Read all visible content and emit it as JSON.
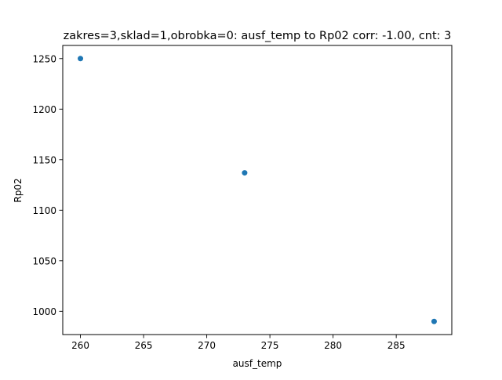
{
  "chart_data": {
    "type": "scatter",
    "title": "zakres=3,sklad=1,obrobka=0: ausf_temp to Rp02 corr: -1.00, cnt: 3",
    "xlabel": "ausf_temp",
    "ylabel": "Rp02",
    "xlim": [
      258.6,
      289.4
    ],
    "ylim": [
      977.0,
      1263.0
    ],
    "xticks": [
      260,
      265,
      270,
      275,
      280,
      285
    ],
    "yticks": [
      1000,
      1050,
      1100,
      1150,
      1200,
      1250
    ],
    "grid": false,
    "legend": "none",
    "marker_color": "#1f77b4",
    "points": [
      {
        "x": 260,
        "y": 1250
      },
      {
        "x": 273,
        "y": 1137
      },
      {
        "x": 288,
        "y": 990
      }
    ]
  }
}
